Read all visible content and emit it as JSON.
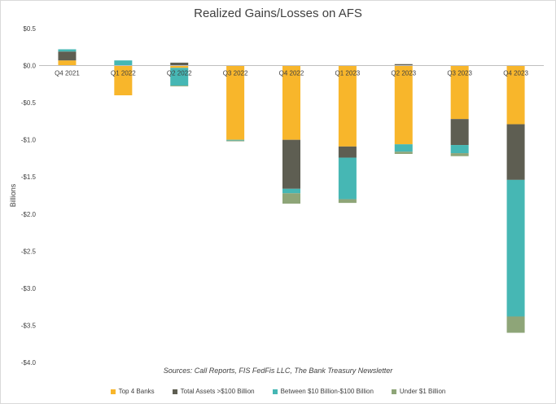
{
  "chart_data": {
    "type": "bar",
    "stacked": true,
    "title": "Realized Gains/Losses on AFS",
    "ylabel": "Billions",
    "xlabel": "",
    "ylim": [
      -4.0,
      0.5
    ],
    "yticks": [
      0.5,
      0.0,
      -0.5,
      -1.0,
      -1.5,
      -2.0,
      -2.5,
      -3.0,
      -3.5,
      -4.0
    ],
    "ytick_labels": [
      "$0.5",
      "$0.0",
      "-$0.5",
      "-$1.0",
      "-$1.5",
      "-$2.0",
      "-$2.5",
      "-$3.0",
      "-$3.5",
      "-$4.0"
    ],
    "categories": [
      "Q4 2021",
      "Q1 2022",
      "Q2 2022",
      "Q3 2022",
      "Q4 2022",
      "Q1 2023",
      "Q2 2023",
      "Q3 2023",
      "Q4 2023"
    ],
    "series": [
      {
        "name": "Top 4 Banks",
        "color": "#f8b62b",
        "values": [
          0.07,
          -0.4,
          -0.03,
          -1.0,
          -1.0,
          -1.09,
          -1.06,
          -0.72,
          -0.79
        ]
      },
      {
        "name": "Total Assets >$100 Billion",
        "color": "#5e5e52",
        "values": [
          0.12,
          0.0,
          0.04,
          0.0,
          -0.66,
          -0.15,
          0.02,
          -0.35,
          -0.75
        ]
      },
      {
        "name": "Between $10 Billion-$100 Billion",
        "color": "#46b7b4",
        "values": [
          0.03,
          0.07,
          -0.24,
          -0.01,
          -0.06,
          -0.56,
          -0.1,
          -0.11,
          -1.84
        ]
      },
      {
        "name": "Under $1 Billion",
        "color": "#8ea578",
        "values": [
          0.0,
          0.0,
          -0.01,
          -0.01,
          -0.14,
          -0.05,
          -0.03,
          -0.04,
          -0.22
        ]
      }
    ],
    "grid": false,
    "legend_position": "bottom",
    "annotation": "Sources: Call Reports, FIS FedFis LLC, The Bank Treasury Newsletter"
  }
}
